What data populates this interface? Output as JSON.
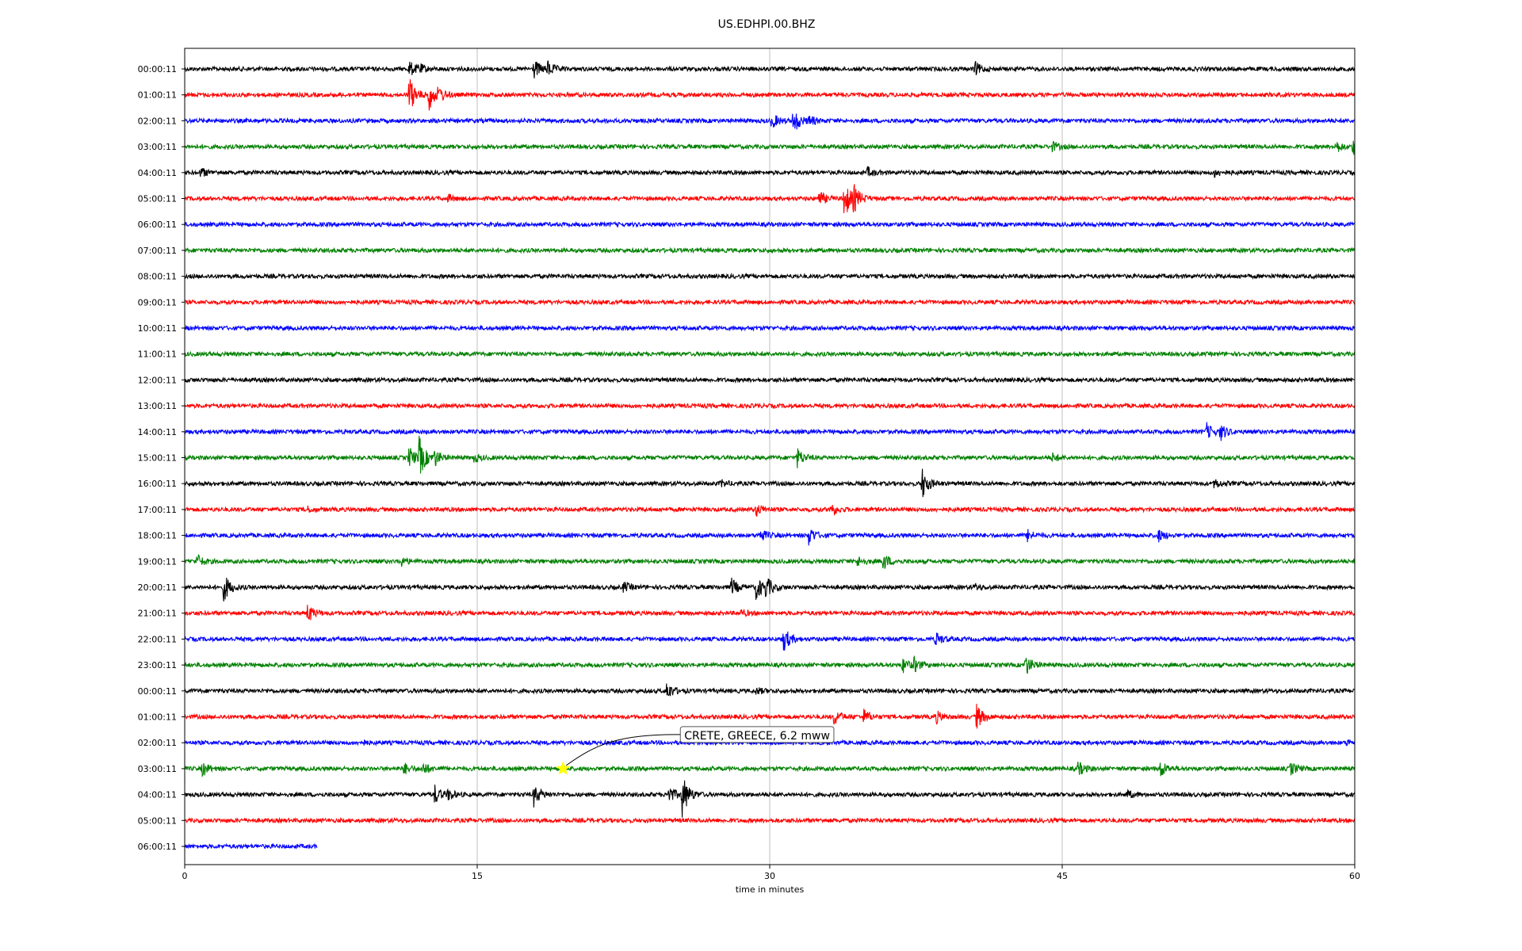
{
  "chart_data": {
    "type": "line",
    "title": "US.EDHPI.00.BHZ",
    "xlabel": "time in minutes",
    "ylabel": "",
    "xlim": [
      0,
      60
    ],
    "x_ticks": [
      0,
      15,
      30,
      45,
      60
    ],
    "grid": "vertical lines at x ticks",
    "series_colors": [
      "#000000",
      "#ff0000",
      "#0000ff",
      "#008000"
    ],
    "rows": [
      {
        "label": "00:00:11",
        "color": "#000000",
        "end": 60,
        "events": [
          {
            "t": 11.5,
            "a": 10
          },
          {
            "t": 12.0,
            "a": 5
          },
          {
            "t": 17.9,
            "a": 12
          },
          {
            "t": 18.6,
            "a": 9
          },
          {
            "t": 40.5,
            "a": 9
          }
        ]
      },
      {
        "label": "01:00:11",
        "color": "#ff0000",
        "end": 60,
        "events": [
          {
            "t": 11.5,
            "a": 24
          },
          {
            "t": 12.5,
            "a": 20
          },
          {
            "t": 13.0,
            "a": 8
          }
        ]
      },
      {
        "label": "02:00:11",
        "color": "#0000ff",
        "end": 60,
        "events": [
          {
            "t": 30.1,
            "a": 10
          },
          {
            "t": 31.2,
            "a": 18
          },
          {
            "t": 32.0,
            "a": 6
          }
        ]
      },
      {
        "label": "03:00:11",
        "color": "#008000",
        "end": 60,
        "events": [
          {
            "t": 44.5,
            "a": 6
          },
          {
            "t": 59.0,
            "a": 8
          },
          {
            "t": 59.9,
            "a": 10
          }
        ]
      },
      {
        "label": "04:00:11",
        "color": "#000000",
        "end": 60,
        "events": [
          {
            "t": 0.8,
            "a": 6
          },
          {
            "t": 35.0,
            "a": 6
          },
          {
            "t": 52.8,
            "a": 5
          }
        ]
      },
      {
        "label": "05:00:11",
        "color": "#ff0000",
        "end": 60,
        "events": [
          {
            "t": 13.5,
            "a": 4
          },
          {
            "t": 32.5,
            "a": 10
          },
          {
            "t": 33.8,
            "a": 28
          },
          {
            "t": 34.3,
            "a": 14
          }
        ]
      },
      {
        "label": "06:00:11",
        "color": "#0000ff",
        "end": 60,
        "events": []
      },
      {
        "label": "07:00:11",
        "color": "#008000",
        "end": 60,
        "events": []
      },
      {
        "label": "08:00:11",
        "color": "#000000",
        "end": 60,
        "events": []
      },
      {
        "label": "09:00:11",
        "color": "#ff0000",
        "end": 60,
        "events": []
      },
      {
        "label": "10:00:11",
        "color": "#0000ff",
        "end": 60,
        "events": []
      },
      {
        "label": "11:00:11",
        "color": "#008000",
        "end": 60,
        "events": []
      },
      {
        "label": "12:00:11",
        "color": "#000000",
        "end": 60,
        "events": []
      },
      {
        "label": "13:00:11",
        "color": "#ff0000",
        "end": 60,
        "events": []
      },
      {
        "label": "14:00:11",
        "color": "#0000ff",
        "end": 60,
        "events": [
          {
            "t": 52.4,
            "a": 10
          },
          {
            "t": 53.1,
            "a": 10
          }
        ]
      },
      {
        "label": "15:00:11",
        "color": "#008000",
        "end": 60,
        "events": [
          {
            "t": 11.5,
            "a": 14
          },
          {
            "t": 12.0,
            "a": 26
          },
          {
            "t": 12.8,
            "a": 10
          },
          {
            "t": 14.8,
            "a": 5
          },
          {
            "t": 31.4,
            "a": 12
          },
          {
            "t": 44.5,
            "a": 5
          }
        ]
      },
      {
        "label": "16:00:11",
        "color": "#000000",
        "end": 60,
        "events": [
          {
            "t": 27.5,
            "a": 4
          },
          {
            "t": 37.8,
            "a": 20
          },
          {
            "t": 52.8,
            "a": 6
          }
        ]
      },
      {
        "label": "17:00:11",
        "color": "#ff0000",
        "end": 60,
        "events": [
          {
            "t": 6.2,
            "a": 4
          },
          {
            "t": 29.3,
            "a": 8
          },
          {
            "t": 33.1,
            "a": 9
          }
        ]
      },
      {
        "label": "18:00:11",
        "color": "#0000ff",
        "end": 60,
        "events": [
          {
            "t": 29.5,
            "a": 8
          },
          {
            "t": 32.0,
            "a": 12
          },
          {
            "t": 43.2,
            "a": 7
          },
          {
            "t": 49.9,
            "a": 8
          }
        ]
      },
      {
        "label": "19:00:11",
        "color": "#008000",
        "end": 60,
        "events": [
          {
            "t": 0.6,
            "a": 9
          },
          {
            "t": 11.0,
            "a": 7
          },
          {
            "t": 34.5,
            "a": 6
          },
          {
            "t": 35.8,
            "a": 11
          }
        ]
      },
      {
        "label": "20:00:11",
        "color": "#000000",
        "end": 60,
        "events": [
          {
            "t": 2.0,
            "a": 18
          },
          {
            "t": 22.5,
            "a": 6
          },
          {
            "t": 28.0,
            "a": 12
          },
          {
            "t": 29.3,
            "a": 16
          },
          {
            "t": 29.8,
            "a": 12
          },
          {
            "t": 40.5,
            "a": 4
          }
        ]
      },
      {
        "label": "21:00:11",
        "color": "#ff0000",
        "end": 60,
        "events": [
          {
            "t": 6.3,
            "a": 12
          },
          {
            "t": 28.5,
            "a": 4
          }
        ]
      },
      {
        "label": "22:00:11",
        "color": "#0000ff",
        "end": 60,
        "events": [
          {
            "t": 30.7,
            "a": 16
          },
          {
            "t": 38.5,
            "a": 9
          }
        ]
      },
      {
        "label": "23:00:11",
        "color": "#008000",
        "end": 60,
        "events": [
          {
            "t": 36.8,
            "a": 10
          },
          {
            "t": 37.4,
            "a": 8
          },
          {
            "t": 43.1,
            "a": 14
          }
        ]
      },
      {
        "label": "00:00:11",
        "color": "#000000",
        "end": 60,
        "events": [
          {
            "t": 24.7,
            "a": 12
          },
          {
            "t": 29.3,
            "a": 4
          }
        ]
      },
      {
        "label": "01:00:11",
        "color": "#ff0000",
        "end": 60,
        "events": [
          {
            "t": 33.3,
            "a": 10
          },
          {
            "t": 34.8,
            "a": 9
          },
          {
            "t": 38.5,
            "a": 8
          },
          {
            "t": 40.6,
            "a": 16
          }
        ]
      },
      {
        "label": "02:00:11",
        "color": "#0000ff",
        "end": 60,
        "events": [
          {
            "t": 9.0,
            "a": 3
          },
          {
            "t": 59.6,
            "a": 4
          }
        ]
      },
      {
        "label": "03:00:11",
        "color": "#008000",
        "end": 60,
        "events": [
          {
            "t": 0.9,
            "a": 9
          },
          {
            "t": 11.2,
            "a": 8
          },
          {
            "t": 12.2,
            "a": 8
          },
          {
            "t": 45.8,
            "a": 9
          },
          {
            "t": 50.0,
            "a": 12
          },
          {
            "t": 56.7,
            "a": 8
          }
        ]
      },
      {
        "label": "04:00:11",
        "color": "#000000",
        "end": 60,
        "events": [
          {
            "t": 12.8,
            "a": 12
          },
          {
            "t": 13.5,
            "a": 6
          },
          {
            "t": 17.9,
            "a": 14
          },
          {
            "t": 24.8,
            "a": 12
          },
          {
            "t": 25.5,
            "a": 28
          },
          {
            "t": 48.3,
            "a": 5
          }
        ]
      },
      {
        "label": "05:00:11",
        "color": "#ff0000",
        "end": 60,
        "events": []
      },
      {
        "label": "06:00:11",
        "color": "#0000ff",
        "end": 6.8,
        "events": []
      }
    ],
    "annotations": [
      {
        "text": "CRETE, GREECE, 6.2 mww",
        "row": 27,
        "t": 19.4,
        "marker": "star",
        "marker_color": "#ffff00"
      }
    ]
  }
}
